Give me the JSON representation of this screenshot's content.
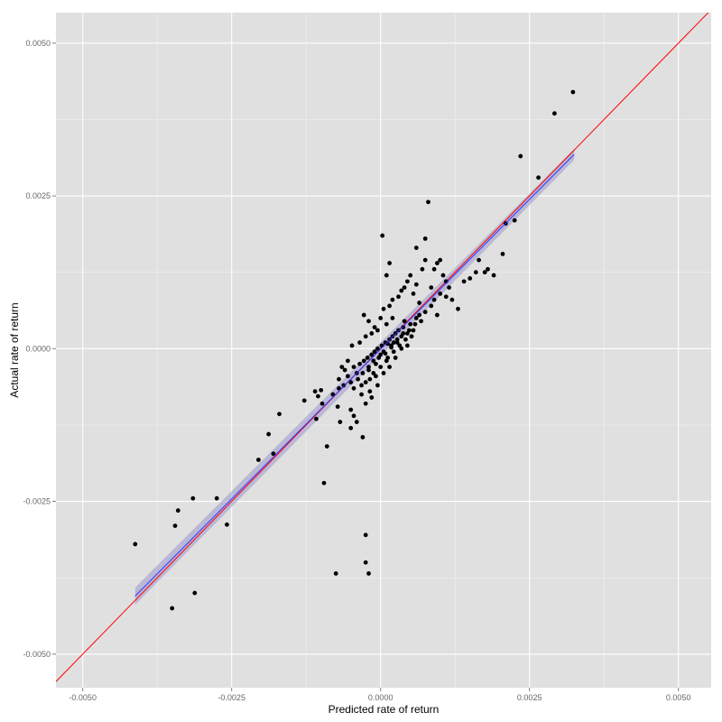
{
  "chart_data": {
    "type": "scatter",
    "title": "",
    "xlabel": "Predicted rate of return",
    "ylabel": "Actual rate of return",
    "xlim": [
      -0.00545,
      0.00555
    ],
    "ylim": [
      -0.00555,
      0.0055
    ],
    "x_ticks": [
      -0.005,
      -0.0025,
      0.0,
      0.0025,
      0.005
    ],
    "x_tick_labels": [
      "-0.0050",
      "-0.0025",
      "0.0000",
      "0.0025",
      "0.0050"
    ],
    "y_ticks": [
      -0.005,
      -0.0025,
      0.0,
      0.0025,
      0.005
    ],
    "y_tick_labels": [
      "-0.0050",
      "-0.0025",
      "0.0000",
      "0.0025",
      "0.0050"
    ],
    "grid": true,
    "legend": "none",
    "colors": {
      "panel": "#e0e0e0",
      "grid_major": "#ffffff",
      "grid_minor": "#f0f0f0",
      "points": "#000000",
      "identity_line": "#ff0000",
      "fit_line": "#3333ff",
      "confidence_band": "#9999cc"
    },
    "reference_line": {
      "label": "y = x",
      "slope": 1,
      "intercept": 0
    },
    "fit_line": {
      "x": [
        -0.00412,
        0.00325
      ],
      "y": [
        -0.00405,
        0.00318
      ],
      "band_halfwidth": [
        0.00014,
        9e-05
      ]
    },
    "points": [
      [
        -0.00412,
        -0.0032
      ],
      [
        -0.0035,
        -0.00425
      ],
      [
        -0.00345,
        -0.0029
      ],
      [
        -0.0034,
        -0.00265
      ],
      [
        -0.00315,
        -0.00245
      ],
      [
        -0.00312,
        -0.004
      ],
      [
        -0.00275,
        -0.00245
      ],
      [
        -0.00258,
        -0.00288
      ],
      [
        -0.00205,
        -0.00182
      ],
      [
        -0.00188,
        -0.0014
      ],
      [
        -0.0018,
        -0.00172
      ],
      [
        -0.0017,
        -0.00107
      ],
      [
        -0.00128,
        -0.00085
      ],
      [
        -0.0011,
        -0.0007
      ],
      [
        -0.00108,
        -0.00115
      ],
      [
        -0.00105,
        -0.00078
      ],
      [
        -0.001,
        -0.00068
      ],
      [
        -0.00098,
        -0.0009
      ],
      [
        -0.00095,
        -0.0022
      ],
      [
        -0.0009,
        -0.0016
      ],
      [
        -0.0008,
        -0.00075
      ],
      [
        -0.00075,
        -0.00368
      ],
      [
        -0.00072,
        -0.00095
      ],
      [
        -0.0007,
        -0.00065
      ],
      [
        -0.00068,
        -0.0012
      ],
      [
        -0.00062,
        -0.0006
      ],
      [
        -0.00055,
        -0.00045
      ],
      [
        -0.0005,
        -0.001
      ],
      [
        -0.00045,
        -0.0003
      ],
      [
        -0.0004,
        -0.0004
      ],
      [
        -0.00035,
        -0.00025
      ],
      [
        -0.00032,
        -0.00075
      ],
      [
        -0.00028,
        -0.0002
      ],
      [
        -0.00025,
        -0.00055
      ],
      [
        -0.00022,
        -0.00015
      ],
      [
        -0.0002,
        -0.0003
      ],
      [
        -0.00018,
        -0.0007
      ],
      [
        -0.00015,
        -0.0001
      ],
      [
        -0.00012,
        -0.0002
      ],
      [
        -0.0001,
        -5e-05
      ],
      [
        -8e-05,
        -0.00045
      ],
      [
        -5e-05,
        0.0
      ],
      [
        -3e-05,
        -0.00015
      ],
      [
        0.0,
        -0.0001
      ],
      [
        2e-05,
        5e-05
      ],
      [
        5e-05,
        -5e-05
      ],
      [
        8e-05,
        0.0001
      ],
      [
        0.0001,
        -0.0002
      ],
      [
        0.00012,
        8e-05
      ],
      [
        0.00015,
        0.00015
      ],
      [
        0.00018,
        2e-05
      ],
      [
        0.0002,
        0.0002
      ],
      [
        0.00022,
        0.0001
      ],
      [
        0.00025,
        0.00025
      ],
      [
        0.00028,
        0.00015
      ],
      [
        0.0003,
        0.0003
      ],
      [
        0.00035,
        0.0002
      ],
      [
        0.00038,
        0.00035
      ],
      [
        0.0004,
        0.00045
      ],
      [
        0.00045,
        0.00025
      ],
      [
        0.0005,
        0.0004
      ],
      [
        0.00055,
        0.0003
      ],
      [
        0.0006,
        0.0005
      ],
      [
        0.00065,
        0.00055
      ],
      [
        -0.00028,
        0.00055
      ],
      [
        -0.0002,
        0.00045
      ],
      [
        -0.0001,
        0.00035
      ],
      [
        0.0,
        0.0005
      ],
      [
        5e-05,
        0.00065
      ],
      [
        0.00015,
        0.0007
      ],
      [
        0.0002,
        0.0008
      ],
      [
        0.0003,
        0.00085
      ],
      [
        0.00035,
        0.00095
      ],
      [
        0.0004,
        0.001
      ],
      [
        0.00045,
        0.0011
      ],
      [
        0.0005,
        0.0012
      ],
      [
        0.00055,
        0.0009
      ],
      [
        0.0006,
        0.00105
      ],
      [
        0.00065,
        0.00075
      ],
      [
        0.0007,
        0.0013
      ],
      [
        0.00075,
        0.00145
      ],
      [
        0.0008,
        0.0024
      ],
      [
        0.00085,
        0.001
      ],
      [
        0.0009,
        0.0013
      ],
      [
        0.00095,
        0.0014
      ],
      [
        0.001,
        0.00145
      ],
      [
        0.00105,
        0.0012
      ],
      [
        0.0011,
        0.0011
      ],
      [
        0.0012,
        0.0008
      ],
      [
        0.0013,
        0.00065
      ],
      [
        0.0014,
        0.0011
      ],
      [
        0.0015,
        0.00115
      ],
      [
        0.0016,
        0.00125
      ],
      [
        0.00165,
        0.00145
      ],
      [
        0.00175,
        0.00125
      ],
      [
        0.0018,
        0.0013
      ],
      [
        0.0019,
        0.0012
      ],
      [
        0.00205,
        0.00155
      ],
      [
        0.0021,
        0.00205
      ],
      [
        0.00225,
        0.0021
      ],
      [
        0.00235,
        0.00315
      ],
      [
        0.00265,
        0.0028
      ],
      [
        0.00292,
        0.00385
      ],
      [
        0.00323,
        0.0042
      ],
      [
        3e-05,
        0.00185
      ],
      [
        0.0001,
        0.0012
      ],
      [
        0.00015,
        0.0014
      ],
      [
        0.0006,
        0.00165
      ],
      [
        0.00075,
        0.0018
      ],
      [
        -0.00025,
        -0.00305
      ],
      [
        -0.00025,
        -0.0035
      ],
      [
        -0.0002,
        -0.00368
      ],
      [
        -0.0005,
        -0.0013
      ],
      [
        -0.00045,
        -0.0011
      ],
      [
        -0.0004,
        -0.0012
      ],
      [
        -0.0003,
        -0.00145
      ],
      [
        -0.00025,
        -0.0009
      ],
      [
        -0.00015,
        -0.0008
      ],
      [
        -5e-05,
        -0.0006
      ],
      [
        5e-05,
        -0.0004
      ],
      [
        0.00015,
        -0.0003
      ],
      [
        0.00025,
        -0.00015
      ],
      [
        0.00035,
        0.0
      ],
      [
        0.00045,
        5e-05
      ],
      [
        -0.00055,
        -0.0002
      ],
      [
        -0.00048,
        5e-05
      ],
      [
        -0.00035,
        0.0001
      ],
      [
        -0.00025,
        0.0002
      ],
      [
        -0.00015,
        0.00025
      ],
      [
        -5e-05,
        0.0003
      ],
      [
        0.0001,
        0.0004
      ],
      [
        0.0002,
        0.0005
      ],
      [
        -0.0006,
        -0.00035
      ],
      [
        -0.0005,
        -0.00055
      ],
      [
        -0.00038,
        -0.0005
      ],
      [
        -0.0003,
        -0.0004
      ],
      [
        -0.0002,
        -0.00035
      ],
      [
        -0.00012,
        -0.0004
      ],
      [
        0.0,
        -0.0003
      ],
      [
        0.00012,
        -0.00015
      ],
      [
        0.00022,
        -5e-05
      ],
      [
        0.00032,
        5e-05
      ],
      [
        0.00042,
        0.00015
      ],
      [
        0.00052,
        0.0002
      ],
      [
        -0.0007,
        -0.0005
      ],
      [
        -0.00065,
        -0.0003
      ],
      [
        -0.00045,
        -0.00065
      ],
      [
        -0.00032,
        -0.0006
      ],
      [
        -0.00018,
        -0.0005
      ],
      [
        -8e-05,
        -0.00025
      ],
      [
        8e-05,
        -8e-05
      ],
      [
        0.00018,
        5e-05
      ],
      [
        0.00028,
        0.0001
      ],
      [
        0.00038,
        0.00025
      ],
      [
        0.00048,
        0.0003
      ],
      [
        0.00058,
        0.0004
      ],
      [
        0.00068,
        0.00045
      ],
      [
        0.00075,
        0.0006
      ],
      [
        0.00085,
        0.0007
      ],
      [
        0.0009,
        0.0008
      ],
      [
        0.00095,
        0.00055
      ],
      [
        0.001,
        0.0009
      ],
      [
        0.0011,
        0.00085
      ],
      [
        0.00115,
        0.001
      ]
    ]
  }
}
